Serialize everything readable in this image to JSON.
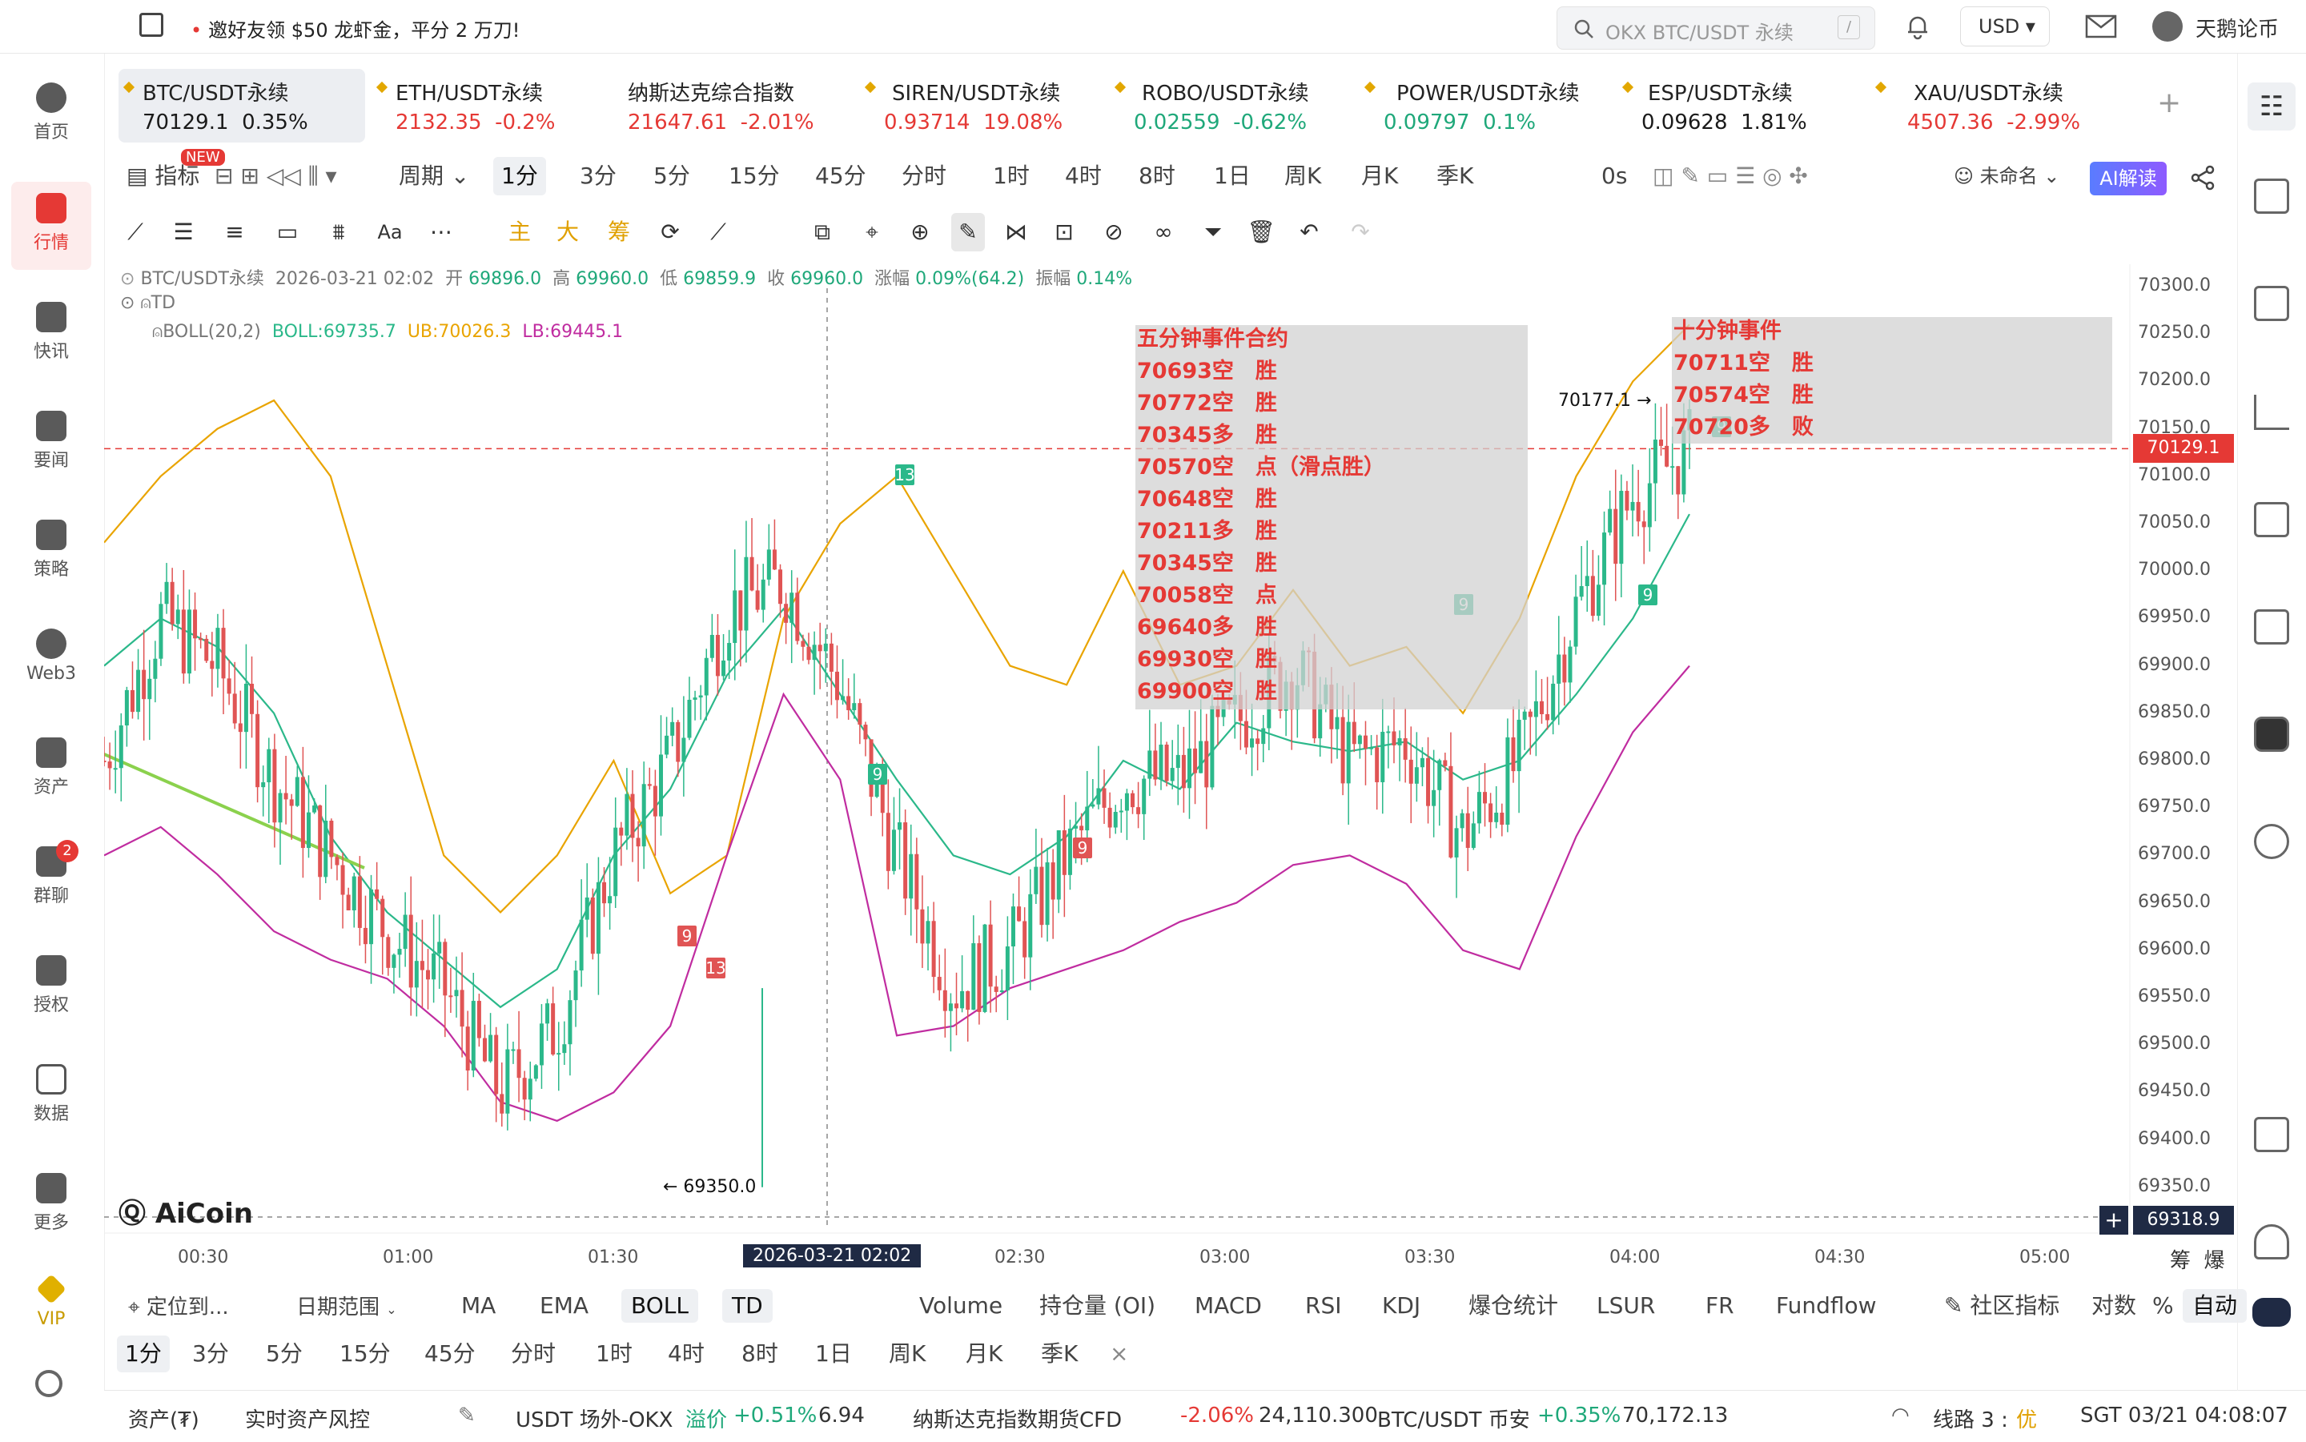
{
  "topbar": {
    "promo": "邀好友领 $50 龙虾金，平分 2 万刀!",
    "search_placeholder": "OKX BTC/USDT 永续",
    "search_shortcut": "/",
    "currency": "USD",
    "username": "天鹅论币"
  },
  "nav": [
    {
      "label": "首页"
    },
    {
      "label": "行情"
    },
    {
      "label": "快讯"
    },
    {
      "label": "要闻"
    },
    {
      "label": "策略"
    },
    {
      "label": "Web3"
    },
    {
      "label": "资产"
    },
    {
      "label": "群聊",
      "badge": "2"
    },
    {
      "label": "授权"
    },
    {
      "label": "数据"
    },
    {
      "label": "更多"
    },
    {
      "label": "VIP"
    }
  ],
  "tickers": [
    {
      "name": "BTC/USDT永续",
      "price": "70129.1",
      "change": "0.35%",
      "color": "#1a1a1a"
    },
    {
      "name": "ETH/USDT永续",
      "price": "2132.35",
      "change": "-0.2%",
      "color": "#e53935"
    },
    {
      "name": "纳斯达克综合指数",
      "price": "21647.61",
      "change": "-2.01%",
      "color": "#e53935"
    },
    {
      "name": "SIREN/USDT永续",
      "price": "0.93714",
      "change": "19.08%",
      "color": "#e53935"
    },
    {
      "name": "ROBO/USDT永续",
      "price": "0.02559",
      "change": "-0.62%",
      "color": "#1fa87a"
    },
    {
      "name": "POWER/USDT永续",
      "price": "0.09797",
      "change": "0.1%",
      "color": "#1fa87a"
    },
    {
      "name": "ESP/USDT永续",
      "price": "0.09628",
      "change": "1.81%",
      "color": "#1a1a1a"
    },
    {
      "name": "XAU/USDT永续",
      "price": "4507.36",
      "change": "-2.99%",
      "color": "#e53935"
    }
  ],
  "toolbar": {
    "indicator": "指标",
    "new_badge": "NEW",
    "period": "周期",
    "timeframes": [
      "1分",
      "3分",
      "5分",
      "15分",
      "45分",
      "分时",
      "1时",
      "4时",
      "8时",
      "1日",
      "周K",
      "月K",
      "季K"
    ],
    "countdown": "0s",
    "layout_name": "未命名",
    "ai_button": "AI解读",
    "draw_labels": [
      "主",
      "大",
      "筹"
    ],
    "text_tool": "Aa"
  },
  "legend": {
    "symbol": "BTC/USDT永续",
    "datetime": "2026-03-21 02:02",
    "open_label": "开",
    "open": "69896.0",
    "high_label": "高",
    "high": "69960.0",
    "low_label": "低",
    "low": "69859.9",
    "close_label": "收",
    "close": "69960.0",
    "change_label": "涨幅",
    "change": "0.09%(64.2)",
    "amp_label": "振幅",
    "amp": "0.14%",
    "td": "TD",
    "boll": "BOLL(20,2)",
    "boll_mid": "BOLL:69735.7",
    "boll_ub": "UB:70026.3",
    "boll_lb": "LB:69445.1"
  },
  "annotations": {
    "box1_title": "五分钟事件合约",
    "box1_lines": [
      "70693空　胜",
      "70772空　胜",
      "70345多　胜",
      "70570空　点（滑点胜）",
      "70648空　胜",
      "70211多　胜",
      "70345空　胜",
      "70058空　点",
      "69640多　胜",
      "69930空　胜",
      "69900空　胜"
    ],
    "box2_title": "十分钟事件",
    "box2_lines": [
      "70711空　胜",
      "70574空　胜",
      "70720多　败"
    ],
    "high_marker": "70177.1 →",
    "low_marker": "← 69350.0",
    "watermark": "AiCoin",
    "td_counts": [
      "13",
      "9",
      "9",
      "13",
      "9",
      "9",
      "9",
      "9"
    ]
  },
  "chart_data": {
    "type": "candlestick",
    "symbol": "BTC/USDT永续",
    "interval": "1分",
    "y_ticks": [
      70300.0,
      70250.0,
      70200.0,
      70150.0,
      70100.0,
      70050.0,
      70000.0,
      69950.0,
      69900.0,
      69850.0,
      69800.0,
      69750.0,
      69700.0,
      69650.0,
      69600.0,
      69550.0,
      69500.0,
      69450.0,
      69400.0,
      69350.0
    ],
    "y_tick_labels": [
      "70300.0",
      "70250.0",
      "70200.0",
      "70150.0",
      "70100.0",
      "70050.0",
      "70000.0",
      "69950.0",
      "69900.0",
      "69850.0",
      "69800.0",
      "69750.0",
      "69700.0",
      "69650.0",
      "69600.0",
      "69550.0",
      "69500.0",
      "69450.0",
      "69400.0",
      "69350.0"
    ],
    "ylim": [
      69318.9,
      70330.0
    ],
    "x_ticks": [
      "00:30",
      "01:00",
      "01:30",
      "2026-03-21 02:02",
      "02:30",
      "03:00",
      "03:30",
      "04:00",
      "04:30",
      "05:00"
    ],
    "current_price": "70129.1",
    "cursor_price": "69318.9",
    "last_close": 70129.1,
    "period_high": 70177.1,
    "period_low": 69350.0,
    "boll_ub_path": [
      70030,
      70100,
      70150,
      70180,
      70100,
      69900,
      69700,
      69640,
      69700,
      69800,
      69660,
      69700,
      69950,
      70050,
      70100,
      70000,
      69900,
      69880,
      70000,
      69880,
      69900,
      69980,
      69900,
      69920,
      69850,
      69950,
      70100,
      70200,
      70260
    ],
    "boll_mid_path": [
      69900,
      69950,
      69920,
      69850,
      69720,
      69640,
      69590,
      69540,
      69580,
      69700,
      69770,
      69890,
      69960,
      69870,
      69780,
      69700,
      69680,
      69720,
      69800,
      69770,
      69840,
      69820,
      69810,
      69820,
      69780,
      69800,
      69870,
      69950,
      70060
    ],
    "boll_lb_path": [
      69700,
      69730,
      69680,
      69620,
      69590,
      69570,
      69520,
      69440,
      69420,
      69450,
      69520,
      69700,
      69870,
      69780,
      69510,
      69520,
      69560,
      69580,
      69600,
      69630,
      69650,
      69690,
      69700,
      69670,
      69600,
      69580,
      69720,
      69830,
      69900
    ],
    "close_path": [
      69800,
      69950,
      69900,
      69780,
      69700,
      69620,
      69560,
      69450,
      69520,
      69700,
      69800,
      69960,
      69990,
      69880,
      69700,
      69560,
      69600,
      69700,
      69780,
      69780,
      69840,
      69900,
      69800,
      69820,
      69720,
      69800,
      69960,
      70080,
      70129
    ]
  },
  "bottom": {
    "locate": "定位到...",
    "date_range": "日期范围",
    "indicators": [
      "MA",
      "EMA",
      "BOLL",
      "TD",
      "Volume",
      "持仓量 (OI)",
      "MACD",
      "RSI",
      "KDJ",
      "爆仓统计",
      "LSUR",
      "FR",
      "Fundflow"
    ],
    "community": "社区指标",
    "log": "对数",
    "pct": "%",
    "auto": "自动",
    "chips": "筹",
    "burst": "爆",
    "close": "×",
    "timeframes": [
      "1分",
      "3分",
      "5分",
      "15分",
      "45分",
      "分时",
      "1时",
      "4时",
      "8时",
      "1日",
      "周K",
      "月K",
      "季K"
    ]
  },
  "status": {
    "assets": "资产(₮)",
    "risk": "实时资产风控",
    "usdt_label": "USDT 场外-OKX",
    "premium_label": "溢价",
    "premium": "+0.51%",
    "usdt_price": "6.94",
    "nasdaq_label": "纳斯达克指数期货CFD",
    "nasdaq_chg": "-2.06%",
    "nasdaq_px": "24,110.300",
    "btc_label": "BTC/USDT 币安",
    "btc_chg": "+0.35%",
    "btc_px": "70,172.13",
    "line": "线路 3 :",
    "line_quality": "优",
    "time": "SGT 03/21 04:08:07"
  }
}
